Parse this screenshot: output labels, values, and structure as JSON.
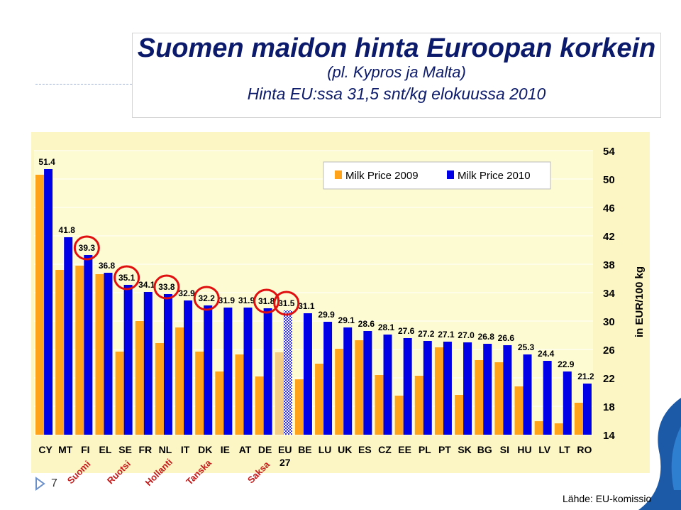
{
  "header": {
    "title": "Suomen maidon hinta Euroopan korkein",
    "subtitle1": "(pl. Kypros ja Malta)",
    "subtitle2": "Hinta EU:ssa 31,5 snt/kg elokuussa 2010"
  },
  "footer": {
    "page_number": "7",
    "source": "Lähde: EU-komissio"
  },
  "chart_data": {
    "type": "bar",
    "categories": [
      "CY",
      "MT",
      "FI",
      "EL",
      "SE",
      "FR",
      "NL",
      "IT",
      "DK",
      "IE",
      "AT",
      "DE",
      "EU 27",
      "BE",
      "LU",
      "UK",
      "ES",
      "CZ",
      "EE",
      "PL",
      "PT",
      "SK",
      "BG",
      "SI",
      "HU",
      "LV",
      "LT",
      "RO"
    ],
    "series": [
      {
        "name": "Milk Price 2009",
        "color": "#ffa31a",
        "values": [
          50.6,
          37.2,
          37.8,
          36.6,
          25.7,
          30.0,
          26.9,
          29.1,
          25.7,
          22.9,
          25.3,
          22.2,
          25.6,
          21.8,
          24.0,
          26.1,
          27.3,
          22.4,
          19.5,
          22.3,
          26.3,
          19.6,
          24.5,
          24.2,
          20.8,
          15.9,
          15.6,
          18.5
        ]
      },
      {
        "name": "Milk Price 2010",
        "color": "#0000e6",
        "values": [
          51.4,
          41.8,
          39.3,
          36.8,
          35.1,
          34.1,
          33.8,
          32.9,
          32.2,
          31.9,
          31.9,
          31.8,
          31.5,
          31.1,
          29.9,
          29.1,
          28.6,
          28.1,
          27.6,
          27.2,
          27.1,
          27.0,
          26.8,
          26.6,
          25.3,
          24.4,
          22.9,
          21.2
        ],
        "labels": [
          "51.4",
          "41.8",
          "39.3",
          "36.8",
          "35.1",
          "34.1",
          "33.8",
          "32.9",
          "32.2",
          "31.9",
          "31.9",
          "31.8",
          "31.5",
          "31.1",
          "29.9",
          "29.1",
          "28.6",
          "28.1",
          "27.6",
          "27.2",
          "27.1",
          "27.0",
          "26.8",
          "26.6",
          "25.3",
          "24.4",
          "22.9",
          "21.2"
        ]
      }
    ],
    "ylim": [
      14,
      54
    ],
    "yticks": [
      "14",
      "18",
      "22",
      "26",
      "30",
      "34",
      "38",
      "42",
      "46",
      "50",
      "54"
    ],
    "ylabel": "in EUR/100 kg",
    "legend": "top-center",
    "highlighted": [
      "FI",
      "SE",
      "NL",
      "DK",
      "DE",
      "EU 27"
    ],
    "country_annotations": [
      {
        "category": "FI",
        "text": "Suomi"
      },
      {
        "category": "SE",
        "text": "Ruotsi"
      },
      {
        "category": "NL",
        "text": "Hollanti"
      },
      {
        "category": "DK",
        "text": "Tanska"
      },
      {
        "category": "DE",
        "text": "Saksa"
      }
    ],
    "plot_bg": "#fdfbd2",
    "outer_bg": "#fcf6c5"
  }
}
